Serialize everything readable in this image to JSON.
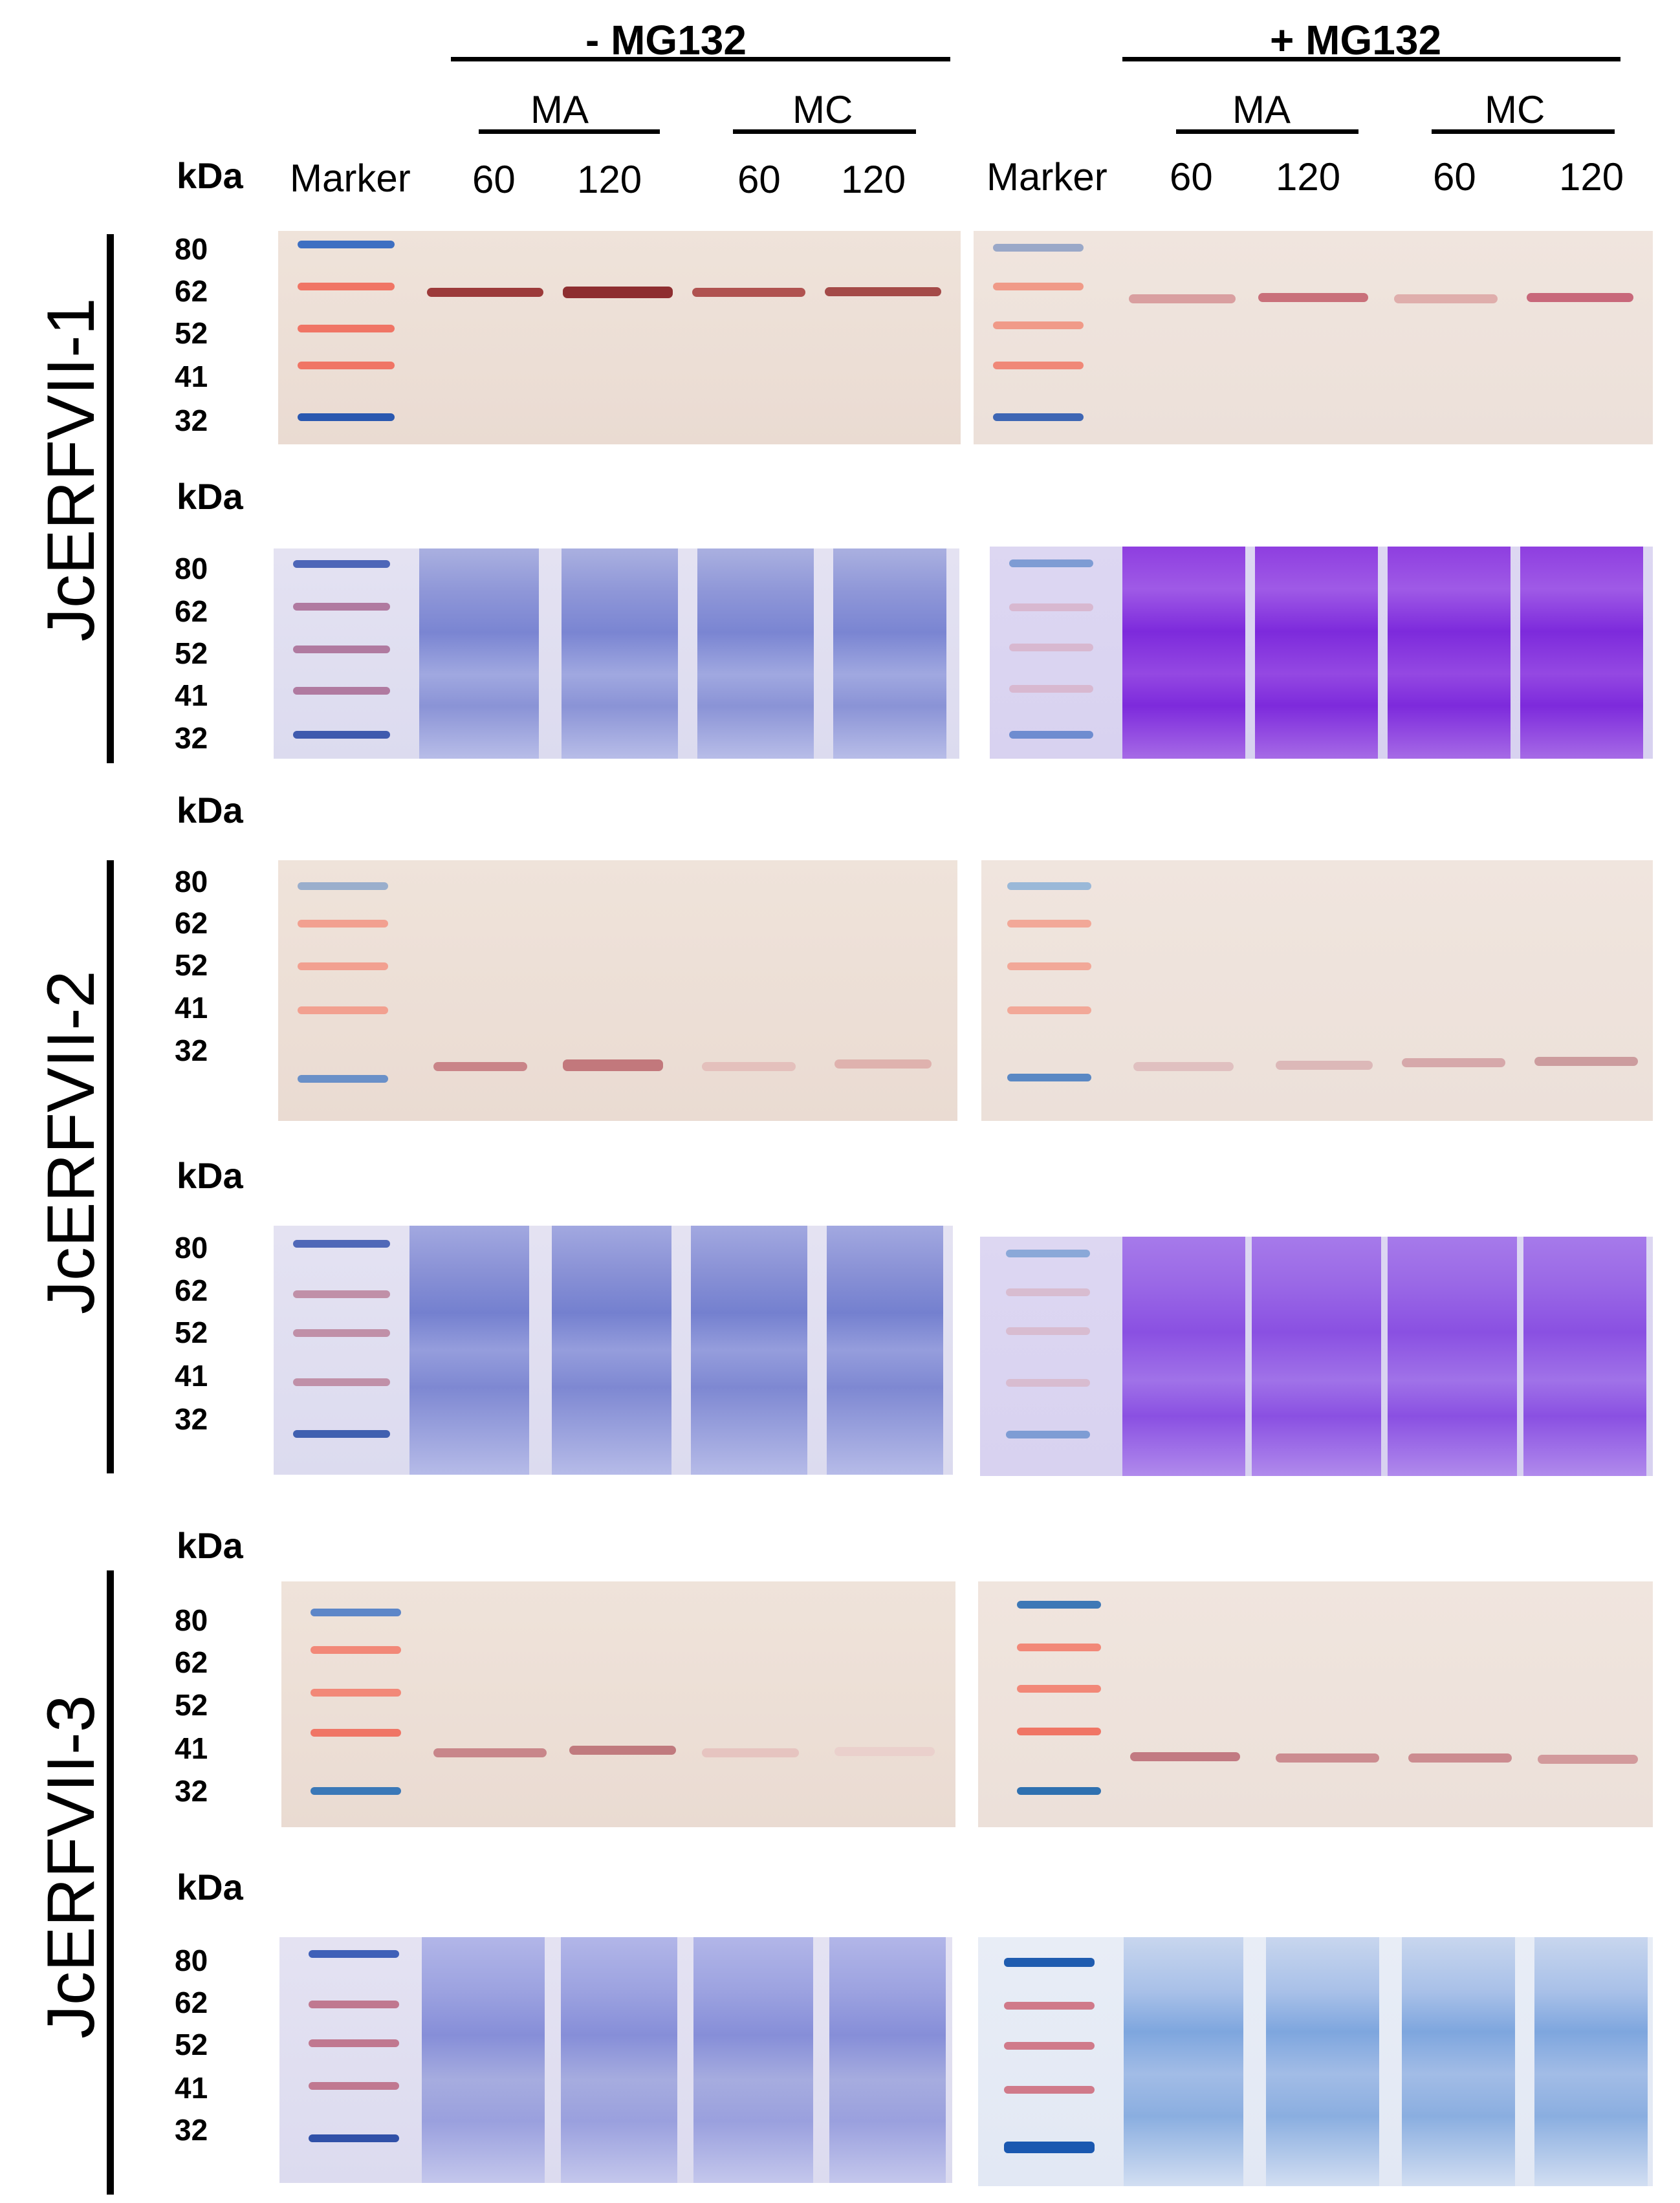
{
  "header": {
    "group_minus": "- MG132",
    "group_plus": "+ MG132",
    "sub_ma": "MA",
    "sub_mc": "MC",
    "kda": "kDa",
    "marker": "Marker",
    "t60": "60",
    "t120": "120"
  },
  "ticks": [
    "80",
    "62",
    "52",
    "41",
    "32"
  ],
  "kda_label": "kDa",
  "genes": [
    "JcERFVII-1",
    "JcERFVII-2",
    "JcERFVII-3"
  ],
  "colors": {
    "western_background": "#ecdfd6",
    "ponceau_band": "#c0505a",
    "marker_blue": "#3a6fc0",
    "marker_red": "#f07060",
    "coomassie_light": "#8a8fd8",
    "coomassie_purple": "#8a30e0",
    "coomassie_blue": "#5a8fd8"
  }
}
